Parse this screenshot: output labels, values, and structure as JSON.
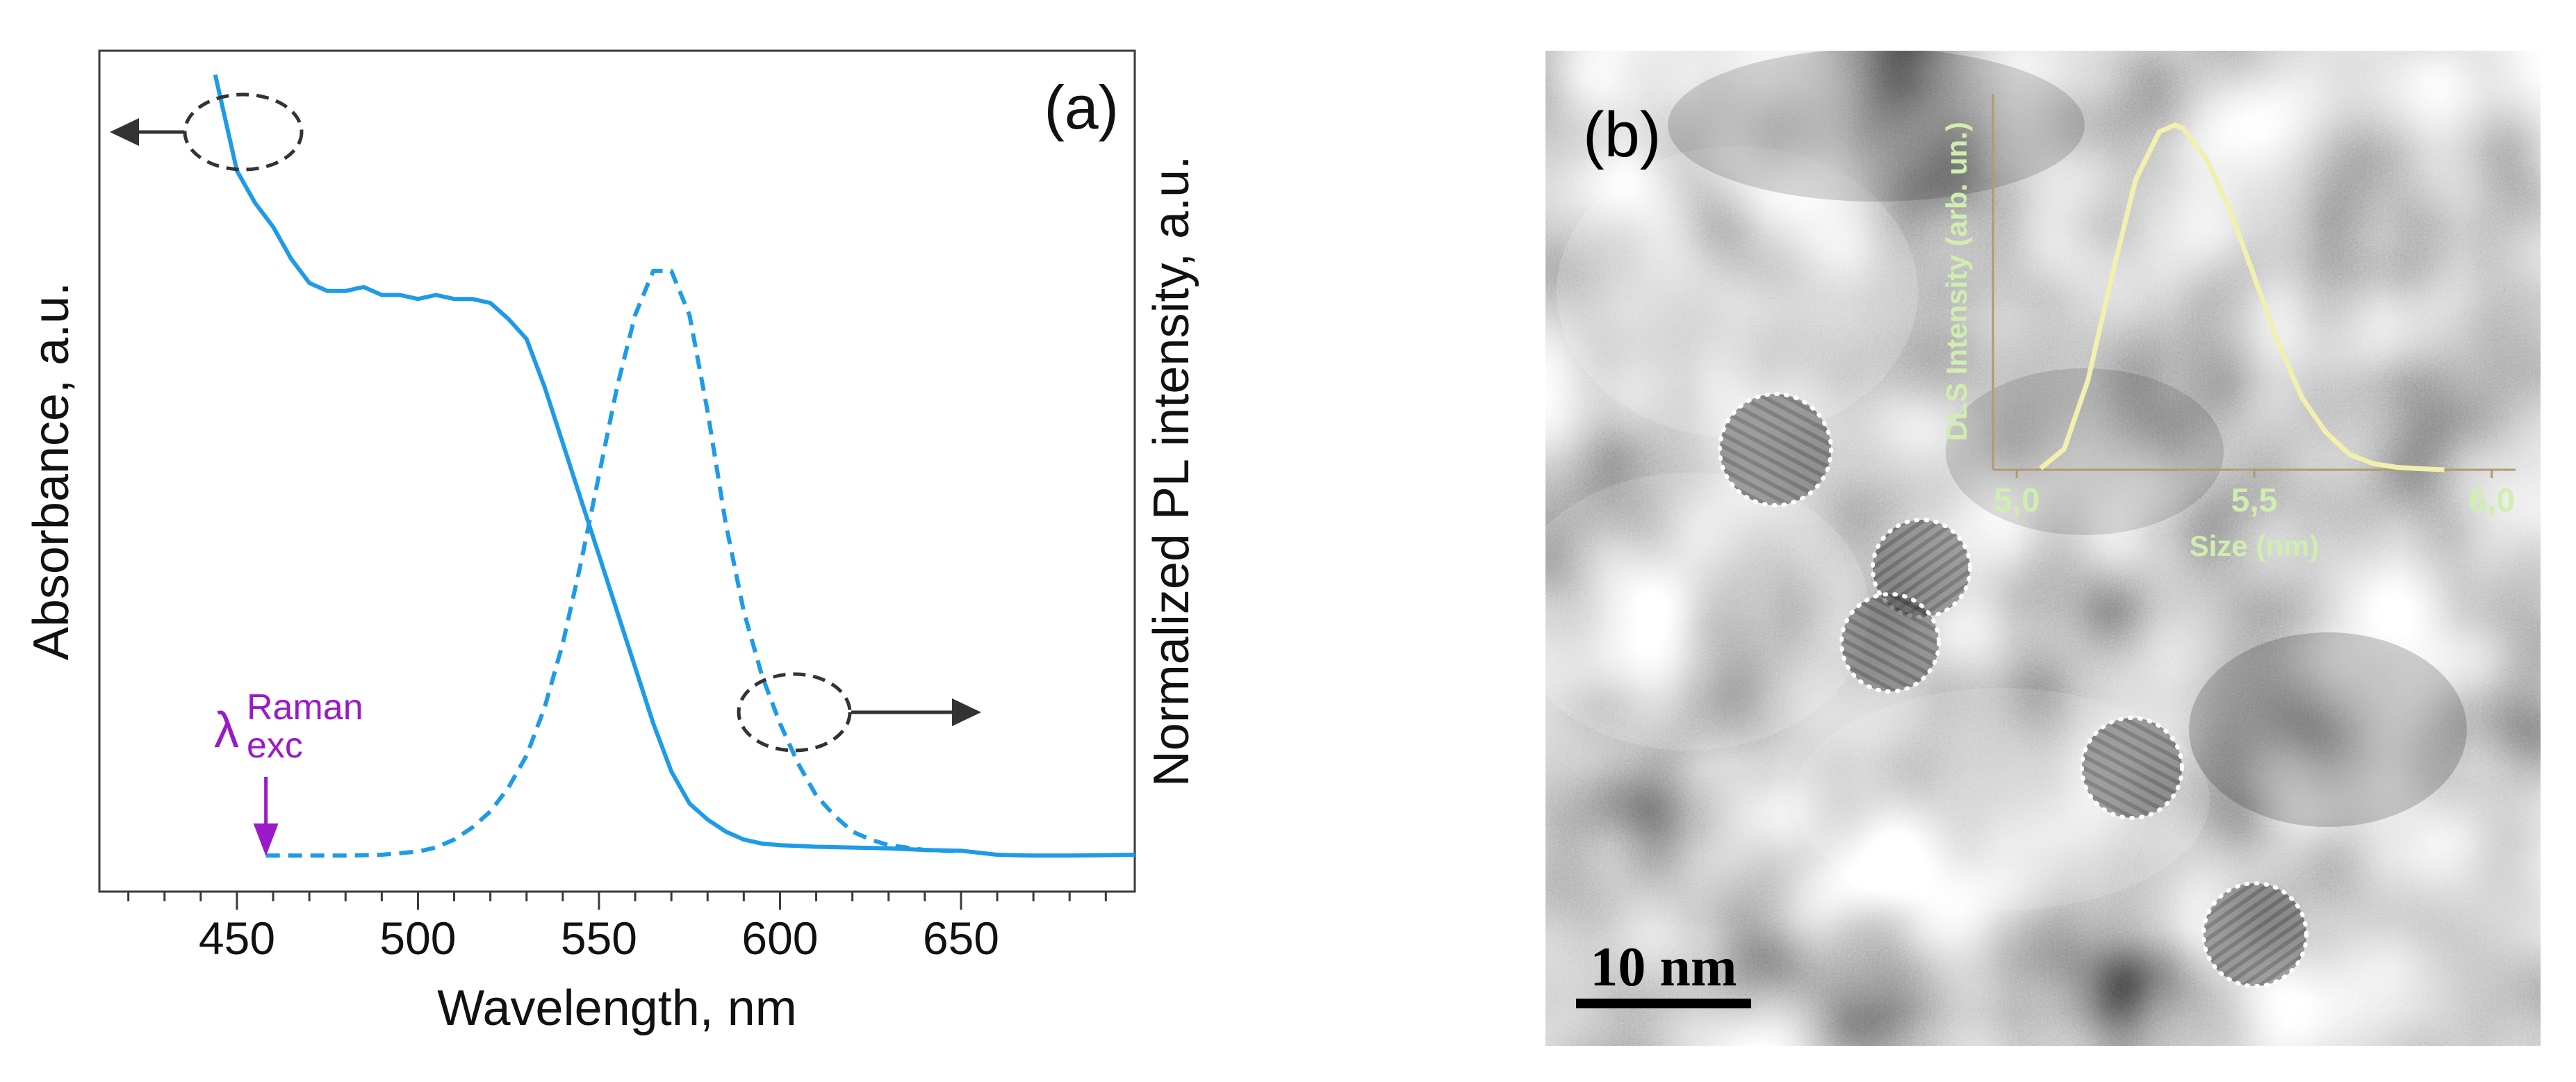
{
  "chart_data": [
    {
      "panel": "(a)",
      "type": "line",
      "xlabel": "Wavelength, nm",
      "ylabel_left": "Absorbance, a.u.",
      "ylabel_right": "Normalized PL intensity, a.u.",
      "xlim": [
        412,
        698
      ],
      "ylim": [
        0,
        1.05
      ],
      "xticks": [
        450,
        500,
        550,
        600,
        650
      ],
      "xtick_labels": [
        "450",
        "500",
        "550",
        "600",
        "650"
      ],
      "yticks_shown": false,
      "series": [
        {
          "name": "Absorbance",
          "style": "solid",
          "color": "#1e9be8",
          "axis": "left",
          "x": [
            444,
            450,
            455,
            460,
            465,
            470,
            475,
            480,
            485,
            490,
            495,
            500,
            505,
            510,
            515,
            520,
            525,
            530,
            535,
            540,
            545,
            550,
            555,
            560,
            565,
            570,
            575,
            580,
            585,
            590,
            595,
            600,
            605,
            610,
            620,
            630,
            640,
            650,
            660,
            670,
            680,
            698
          ],
          "y": [
            1.02,
            0.9,
            0.86,
            0.83,
            0.79,
            0.76,
            0.75,
            0.75,
            0.755,
            0.745,
            0.745,
            0.74,
            0.745,
            0.74,
            0.74,
            0.735,
            0.715,
            0.69,
            0.63,
            0.56,
            0.49,
            0.42,
            0.35,
            0.28,
            0.21,
            0.15,
            0.11,
            0.09,
            0.075,
            0.065,
            0.06,
            0.058,
            0.057,
            0.056,
            0.055,
            0.054,
            0.052,
            0.051,
            0.046,
            0.045,
            0.045,
            0.046
          ]
        },
        {
          "name": "PL",
          "style": "dashed",
          "color": "#1e9be8",
          "axis": "right",
          "x": [
            458,
            470,
            480,
            490,
            500,
            505,
            510,
            515,
            520,
            525,
            530,
            535,
            540,
            545,
            550,
            555,
            560,
            565,
            570,
            575,
            580,
            585,
            590,
            595,
            600,
            605,
            610,
            615,
            620,
            625,
            630,
            640,
            650
          ],
          "y": [
            0.045,
            0.045,
            0.045,
            0.046,
            0.05,
            0.055,
            0.065,
            0.08,
            0.1,
            0.13,
            0.17,
            0.23,
            0.31,
            0.41,
            0.52,
            0.63,
            0.72,
            0.775,
            0.775,
            0.72,
            0.6,
            0.46,
            0.35,
            0.27,
            0.21,
            0.16,
            0.12,
            0.095,
            0.075,
            0.065,
            0.058,
            0.052,
            0.05
          ]
        }
      ],
      "annotations": {
        "panel_label": "(a)",
        "lambda_symbol": "λ",
        "lambda_sub": "exc",
        "lambda_sup": "Raman",
        "lambda_wavelength": 458,
        "annotation_color": "#9a1ac9",
        "left_arrow_target": "Absorbance axis",
        "right_arrow_target": "PL axis",
        "marker_color": "#333333"
      }
    },
    {
      "panel": "(b) inset",
      "type": "line",
      "xlabel": "Size (nm)",
      "ylabel": "DLS Intensity (arb. un.)",
      "xlim": [
        4.95,
        6.05
      ],
      "ylim": [
        0,
        1.05
      ],
      "xticks": [
        5.0,
        5.5,
        6.0
      ],
      "xtick_labels": [
        "5,0",
        "5,5",
        "6,0"
      ],
      "series": [
        {
          "name": "DLS",
          "color": "#f3efae",
          "x": [
            5.05,
            5.1,
            5.15,
            5.2,
            5.25,
            5.3,
            5.333,
            5.35,
            5.4,
            5.45,
            5.5,
            5.55,
            5.6,
            5.65,
            5.7,
            5.75,
            5.8,
            5.85,
            5.9
          ],
          "y": [
            0.004,
            0.06,
            0.26,
            0.56,
            0.84,
            0.98,
            1.0,
            0.99,
            0.9,
            0.75,
            0.56,
            0.37,
            0.21,
            0.11,
            0.045,
            0.018,
            0.007,
            0.003,
            0.0
          ]
        }
      ]
    }
  ],
  "panel_b": {
    "label": "(b)",
    "scale_bar_label": "10 nm",
    "label_color": "#cfeeb0",
    "inset_curve_color": "#f3efae"
  }
}
